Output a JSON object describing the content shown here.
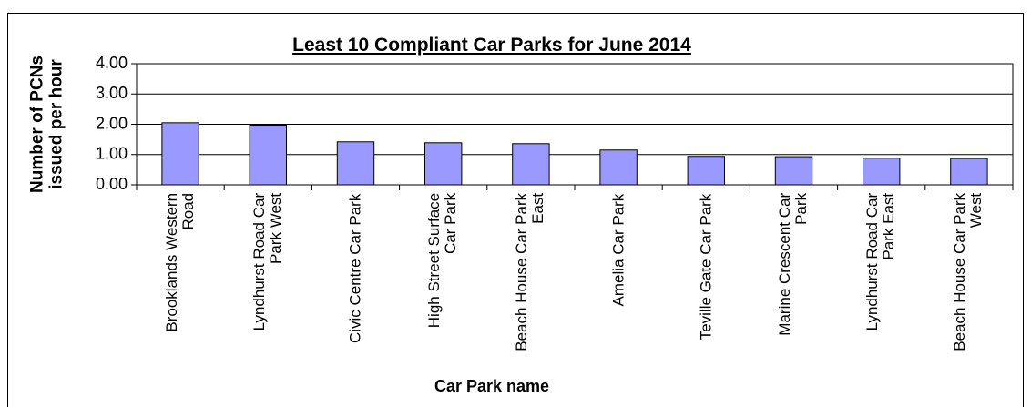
{
  "chart_data": {
    "type": "bar",
    "title": "Least 10 Compliant Car Parks for June 2014",
    "x_label": "Car Park name",
    "y_label": "Number of PCNs issued per hour",
    "categories": [
      "Brooklands Western Road",
      "Lyndhurst Road Car Park West",
      "Civic Centre Car Park",
      "High Street Surface Car Park",
      "Beach House Car Park East",
      "Amelia Car Park",
      "Teville Gate Car Park",
      "Marine Crescent Car Park",
      "Lyndhurst Road Car Park East",
      "Beach House Car Park West"
    ],
    "values": [
      2.05,
      1.97,
      1.42,
      1.39,
      1.36,
      1.15,
      0.94,
      0.93,
      0.88,
      0.87
    ],
    "color": "#9999ff",
    "ylim": [
      0,
      4
    ],
    "yticks": [
      {
        "value": 0,
        "label": "0.00"
      },
      {
        "value": 1,
        "label": "1.00"
      },
      {
        "value": 2,
        "label": "2.00"
      },
      {
        "value": 3,
        "label": "3.00"
      },
      {
        "value": 4,
        "label": "4.00"
      }
    ],
    "grid": true
  }
}
